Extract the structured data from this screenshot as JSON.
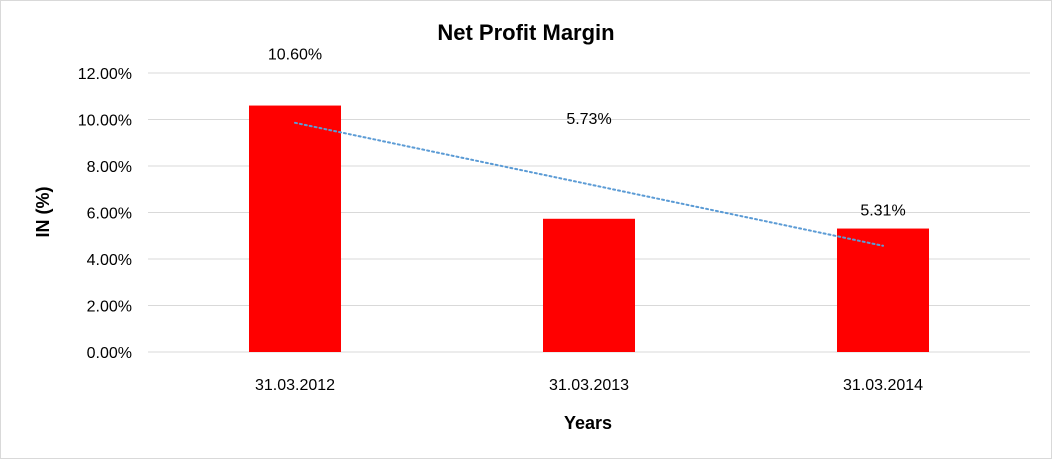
{
  "chart_data": {
    "type": "bar",
    "title": "Net Profit Margin",
    "xlabel": "Years",
    "ylabel": "IN (%)",
    "categories": [
      "31.03.2012",
      "31.03.2013",
      "31.03.2014"
    ],
    "series": [
      {
        "values": [
          10.6,
          5.73,
          5.31
        ],
        "color": "#ff0000"
      }
    ],
    "data_labels": [
      "10.60%",
      "5.73%",
      "5.31%"
    ],
    "ylim": [
      0,
      12
    ],
    "y_ticks": [
      "0.00%",
      "2.00%",
      "4.00%",
      "6.00%",
      "8.00%",
      "10.00%",
      "12.00%"
    ],
    "grid": true,
    "trendline": {
      "type": "linear",
      "style": "dotted",
      "color": "#5b9bd5"
    },
    "gridline_color": "#d9d9d9"
  }
}
